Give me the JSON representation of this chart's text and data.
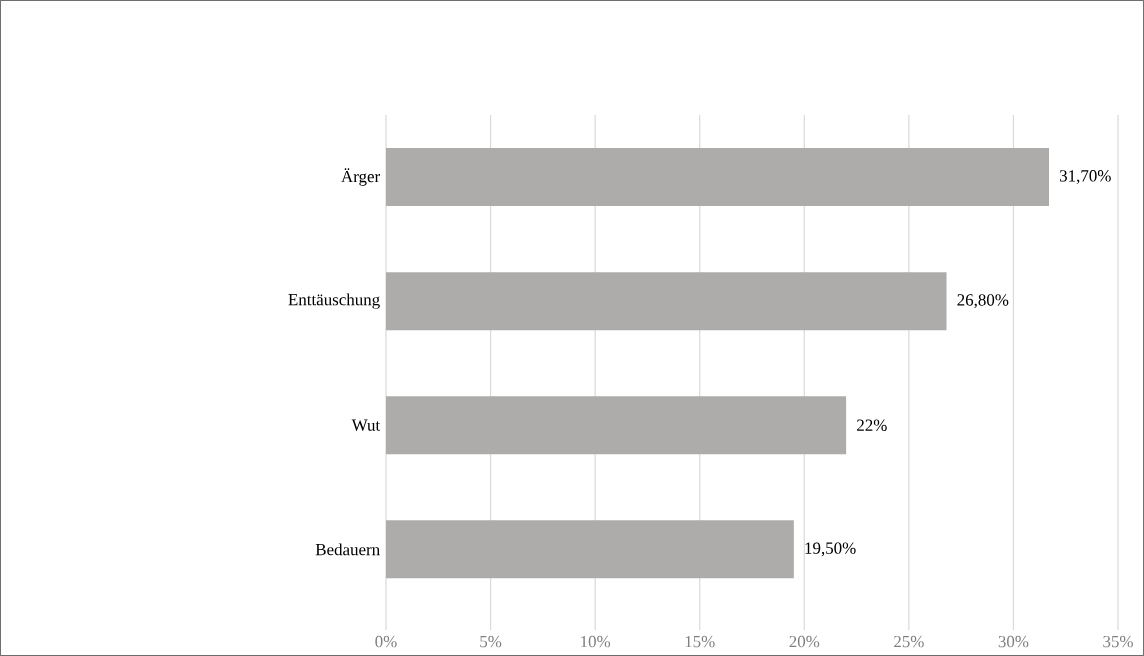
{
  "chart_data": {
    "type": "bar",
    "orientation": "horizontal",
    "categories": [
      "Ärger",
      "Enttäuschung",
      "Wut",
      "Bedauern"
    ],
    "values": [
      31.7,
      26.8,
      22,
      19.5
    ],
    "value_labels": [
      "31,70%",
      "26,80%",
      "22%",
      "19,50%"
    ],
    "color": "#adacab",
    "xlim": [
      0,
      35
    ],
    "xticks": [
      {
        "value": 0,
        "label": "0%"
      },
      {
        "value": 5,
        "label": "5%"
      },
      {
        "value": 10,
        "label": "10%"
      },
      {
        "value": 15,
        "label": "15%"
      },
      {
        "value": 20,
        "label": "20%"
      },
      {
        "value": 25,
        "label": "25%"
      },
      {
        "value": 30,
        "label": "30%"
      },
      {
        "value": 35,
        "label": "35%"
      }
    ],
    "grid": "x"
  }
}
